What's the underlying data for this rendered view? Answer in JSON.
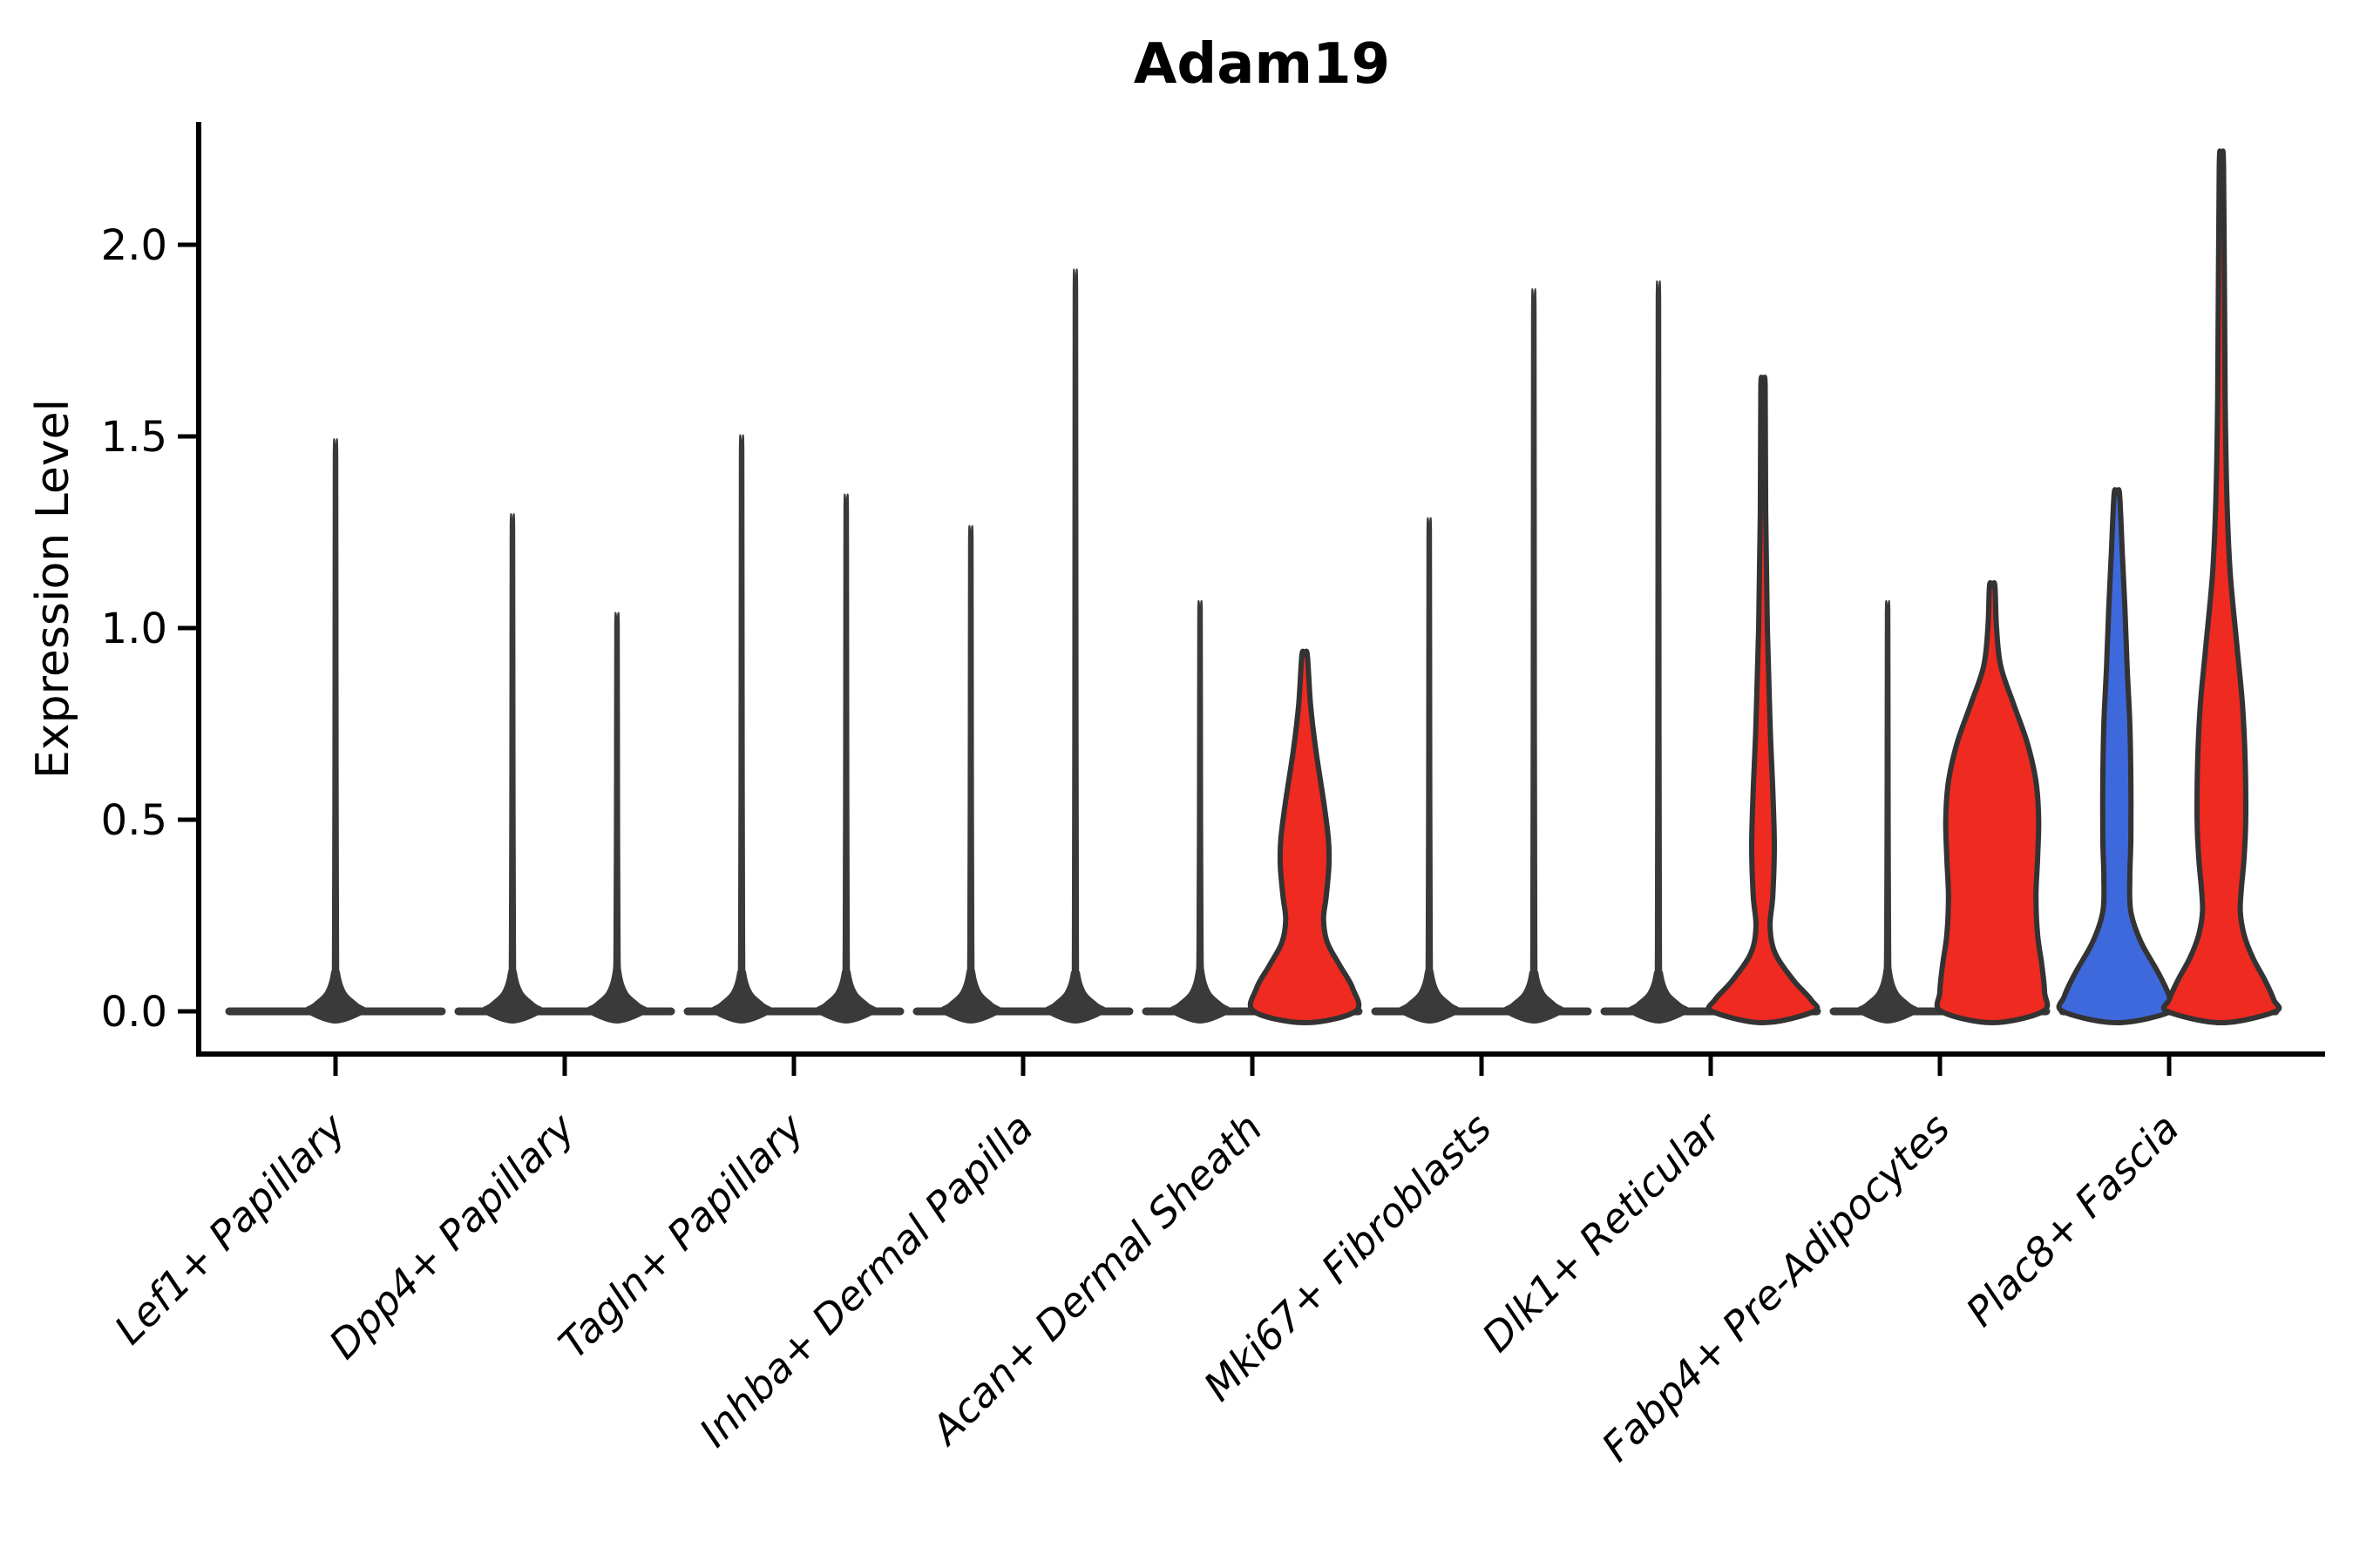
{
  "figure": {
    "title": "Adam19",
    "ylabel": "Expression Level"
  },
  "colors": {
    "red": "#EE2A21",
    "blue": "#3E69DC",
    "edge": "#333333",
    "axis": "#000000",
    "baseline": "#3A3A3A"
  },
  "chart_data": {
    "type": "violin",
    "title": "Adam19",
    "xlabel": "",
    "ylabel": "Expression Level",
    "ylim": [
      0,
      2.32
    ],
    "grid": false,
    "legend": false,
    "yticks": [
      {
        "value": 0.0,
        "label": "0.0"
      },
      {
        "value": 0.5,
        "label": "0.5"
      },
      {
        "value": 1.0,
        "label": "1.0"
      },
      {
        "value": 1.5,
        "label": "1.5"
      },
      {
        "value": 2.0,
        "label": "2.0"
      }
    ],
    "categories": [
      "Lef1+ Papillary",
      "Dpp4+ Papillary",
      "Tagln+ Papillary",
      "Inhba+ Dermal Papilla",
      "Acan+ Dermal Sheath",
      "Mki67+ Fibroblasts",
      "Dlk1+ Reticular",
      "Fabp4+ Pre-Adipocytes",
      "Plac8+ Fascia"
    ],
    "violins": [
      {
        "category": "Lef1+ Papillary",
        "items": [
          {
            "position": "center",
            "max": 1.45,
            "expressed": false,
            "color": "none"
          }
        ]
      },
      {
        "category": "Dpp4+ Papillary",
        "items": [
          {
            "position": "left",
            "max": 1.26,
            "expressed": false,
            "color": "none"
          },
          {
            "position": "right",
            "max": 1.01,
            "expressed": false,
            "color": "none"
          }
        ]
      },
      {
        "category": "Tagln+ Papillary",
        "items": [
          {
            "position": "left",
            "max": 1.46,
            "expressed": false,
            "color": "none"
          },
          {
            "position": "right",
            "max": 1.31,
            "expressed": false,
            "color": "none"
          }
        ]
      },
      {
        "category": "Inhba+ Dermal Papilla",
        "items": [
          {
            "position": "left",
            "max": 1.23,
            "expressed": false,
            "color": "none"
          },
          {
            "position": "right",
            "max": 1.88,
            "expressed": false,
            "color": "none"
          }
        ]
      },
      {
        "category": "Acan+ Dermal Sheath",
        "items": [
          {
            "position": "left",
            "max": 1.04,
            "expressed": false,
            "color": "none"
          },
          {
            "position": "right",
            "max": 0.93,
            "expressed": true,
            "color": "red",
            "profile": [
              [
                0.93,
                0.05
              ],
              [
                0.8,
                0.11
              ],
              [
                0.68,
                0.21
              ],
              [
                0.55,
                0.35
              ],
              [
                0.45,
                0.44
              ],
              [
                0.38,
                0.45
              ],
              [
                0.3,
                0.4
              ],
              [
                0.24,
                0.35
              ],
              [
                0.18,
                0.42
              ],
              [
                0.12,
                0.65
              ],
              [
                0.06,
                0.89
              ],
              [
                0.0,
                0.94
              ]
            ]
          }
        ]
      },
      {
        "category": "Mki67+ Fibroblasts",
        "items": [
          {
            "position": "left",
            "max": 1.25,
            "expressed": false,
            "color": "none"
          },
          {
            "position": "right",
            "max": 1.83,
            "expressed": false,
            "color": "none"
          }
        ]
      },
      {
        "category": "Dlk1+ Reticular",
        "items": [
          {
            "position": "left",
            "max": 1.85,
            "expressed": false,
            "color": "none"
          },
          {
            "position": "right",
            "max": 1.63,
            "expressed": true,
            "color": "red",
            "profile": [
              [
                1.63,
                0.04
              ],
              [
                1.3,
                0.05
              ],
              [
                1.0,
                0.08
              ],
              [
                0.75,
                0.13
              ],
              [
                0.58,
                0.18
              ],
              [
                0.43,
                0.21
              ],
              [
                0.3,
                0.18
              ],
              [
                0.22,
                0.13
              ],
              [
                0.15,
                0.23
              ],
              [
                0.08,
                0.57
              ],
              [
                0.03,
                0.89
              ],
              [
                0.0,
                0.94
              ]
            ]
          }
        ]
      },
      {
        "category": "Fabp4+ Pre-Adipocytes",
        "items": [
          {
            "position": "left",
            "max": 1.04,
            "expressed": false,
            "color": "none"
          },
          {
            "position": "right",
            "max": 1.11,
            "expressed": true,
            "color": "red",
            "profile": [
              [
                1.11,
                0.05
              ],
              [
                1.0,
                0.08
              ],
              [
                0.9,
                0.16
              ],
              [
                0.8,
                0.4
              ],
              [
                0.7,
                0.65
              ],
              [
                0.6,
                0.81
              ],
              [
                0.5,
                0.86
              ],
              [
                0.4,
                0.84
              ],
              [
                0.3,
                0.81
              ],
              [
                0.2,
                0.84
              ],
              [
                0.12,
                0.92
              ],
              [
                0.05,
                0.97
              ],
              [
                0.0,
                0.94
              ]
            ]
          }
        ]
      },
      {
        "category": "Plac8+ Fascia",
        "items": [
          {
            "position": "left",
            "max": 1.35,
            "expressed": true,
            "color": "blue",
            "profile": [
              [
                1.35,
                0.05
              ],
              [
                1.2,
                0.1
              ],
              [
                1.05,
                0.15
              ],
              [
                0.9,
                0.19
              ],
              [
                0.75,
                0.24
              ],
              [
                0.6,
                0.26
              ],
              [
                0.45,
                0.26
              ],
              [
                0.35,
                0.24
              ],
              [
                0.26,
                0.26
              ],
              [
                0.18,
                0.45
              ],
              [
                0.1,
                0.77
              ],
              [
                0.04,
                0.97
              ],
              [
                0.0,
                1.0
              ]
            ]
          },
          {
            "position": "right",
            "max": 2.2,
            "expressed": true,
            "color": "red",
            "profile": [
              [
                2.2,
                0.04
              ],
              [
                1.6,
                0.07
              ],
              [
                1.35,
                0.1
              ],
              [
                1.15,
                0.16
              ],
              [
                0.95,
                0.29
              ],
              [
                0.8,
                0.39
              ],
              [
                0.65,
                0.44
              ],
              [
                0.5,
                0.45
              ],
              [
                0.4,
                0.42
              ],
              [
                0.32,
                0.37
              ],
              [
                0.26,
                0.35
              ],
              [
                0.2,
                0.42
              ],
              [
                0.14,
                0.58
              ],
              [
                0.08,
                0.81
              ],
              [
                0.03,
                0.97
              ],
              [
                0.0,
                1.0
              ]
            ]
          }
        ]
      }
    ]
  }
}
